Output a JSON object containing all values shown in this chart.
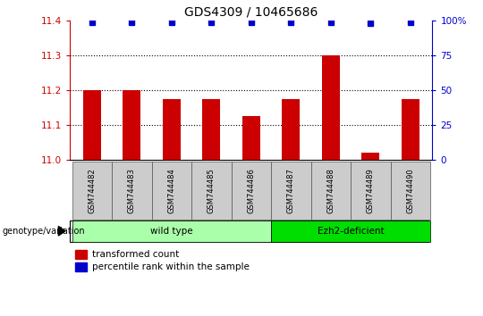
{
  "title": "GDS4309 / 10465686",
  "samples": [
    "GSM744482",
    "GSM744483",
    "GSM744484",
    "GSM744485",
    "GSM744486",
    "GSM744487",
    "GSM744488",
    "GSM744489",
    "GSM744490"
  ],
  "bar_values": [
    11.2,
    11.2,
    11.175,
    11.175,
    11.125,
    11.175,
    11.3,
    11.02,
    11.175
  ],
  "percentile_values": [
    99,
    99,
    99,
    99,
    99,
    99,
    99,
    98,
    99
  ],
  "ylim_left": [
    11.0,
    11.4
  ],
  "ylim_right": [
    0,
    100
  ],
  "yticks_left": [
    11.0,
    11.1,
    11.2,
    11.3,
    11.4
  ],
  "yticks_right": [
    0,
    25,
    50,
    75,
    100
  ],
  "bar_color": "#CC0000",
  "dot_color": "#0000CC",
  "bar_width": 0.45,
  "baseline": 11.0,
  "groups": [
    {
      "label": "wild type",
      "start": 0,
      "end": 4,
      "color": "#AAFFAA"
    },
    {
      "label": "Ezh2-deficient",
      "start": 5,
      "end": 8,
      "color": "#00DD00"
    }
  ],
  "group_label": "genotype/variation",
  "legend_bar_label": "transformed count",
  "legend_dot_label": "percentile rank within the sample",
  "title_fontsize": 10,
  "tick_color_left": "#CC0000",
  "tick_color_right": "#0000CC",
  "sample_box_color": "#CCCCCC",
  "dotted_lines": [
    11.1,
    11.2,
    11.3
  ]
}
